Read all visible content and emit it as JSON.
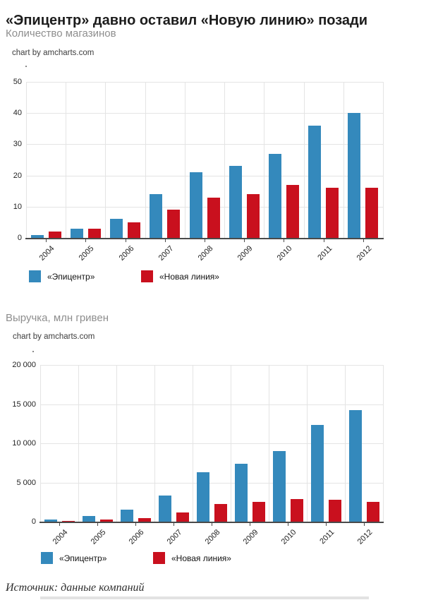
{
  "page": {
    "title": "«Эпицентр» давно оставил «Новую линию» позади",
    "source": "Источник: данные компаний"
  },
  "chart_data": [
    {
      "type": "bar",
      "title": "Количество магазинов",
      "credit": "chart by amcharts.com",
      "categories": [
        "2004",
        "2005",
        "2006",
        "2007",
        "2008",
        "2009",
        "2010",
        "2011",
        "2012"
      ],
      "series": [
        {
          "name": "«Эпицентр»",
          "color": "#3489BC",
          "values": [
            1,
            3,
            6,
            14,
            21,
            23,
            27,
            36,
            40
          ]
        },
        {
          "name": "«Новая линия»",
          "color": "#C9101E",
          "values": [
            2,
            3,
            5,
            9,
            13,
            14,
            17,
            16,
            16
          ]
        }
      ],
      "xlabel": "",
      "ylabel": "",
      "ylim": [
        0,
        50
      ],
      "ytick_labels": [
        "0",
        "10",
        "20",
        "30",
        "40",
        "50"
      ],
      "grid": true,
      "legend_position": "bottom"
    },
    {
      "type": "bar",
      "title": "Выручка, млн гривен",
      "credit": "chart by amcharts.com",
      "categories": [
        "2004",
        "2005",
        "2006",
        "2007",
        "2008",
        "2009",
        "2010",
        "2011",
        "2012"
      ],
      "series": [
        {
          "name": "«Эпицентр»",
          "color": "#3489BC",
          "values": [
            300,
            700,
            1500,
            3300,
            6300,
            7400,
            9000,
            12300,
            14200
          ]
        },
        {
          "name": "«Новая линия»",
          "color": "#C9101E",
          "values": [
            80,
            250,
            450,
            1150,
            2250,
            2500,
            2850,
            2800,
            2550
          ]
        }
      ],
      "xlabel": "",
      "ylabel": "",
      "ylim": [
        0,
        20000
      ],
      "ytick_labels": [
        "0",
        "5 000",
        "10 000",
        "15 000",
        "20 000"
      ],
      "grid": true,
      "legend_position": "bottom"
    }
  ]
}
